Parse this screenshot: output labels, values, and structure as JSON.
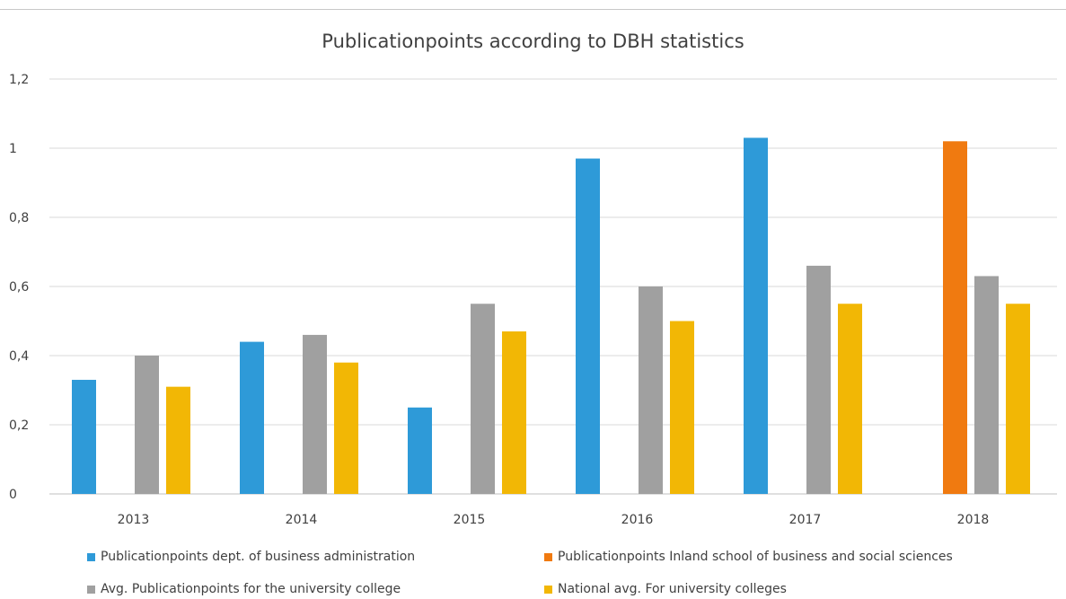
{
  "chart_data": {
    "type": "bar",
    "title": "Publicationpoints according to DBH statistics",
    "categories": [
      "2013",
      "2014",
      "2015",
      "2016",
      "2017",
      "2018"
    ],
    "y_ticks": [
      "0",
      "0,2",
      "0,4",
      "0,6",
      "0,8",
      "1",
      "1,2"
    ],
    "ylim": [
      0,
      1.2
    ],
    "grid": "horizontal",
    "legend_position": "bottom",
    "series": [
      {
        "name": "Publicationpoints dept. of business administration",
        "color": "#2e9ad8",
        "values": [
          0.33,
          0.44,
          0.25,
          0.97,
          1.03,
          null
        ]
      },
      {
        "name": "Publicationpoints Inland school of business and social sciences",
        "color": "#f07a10",
        "values": [
          null,
          null,
          null,
          null,
          null,
          1.02
        ]
      },
      {
        "name": "Avg. Publicationpoints for the university college",
        "color": "#a0a0a0",
        "values": [
          0.4,
          0.46,
          0.55,
          0.6,
          0.66,
          0.63
        ]
      },
      {
        "name": "National avg. For university colleges",
        "color": "#f2b705",
        "values": [
          0.31,
          0.38,
          0.47,
          0.5,
          0.55,
          0.55
        ]
      }
    ]
  }
}
